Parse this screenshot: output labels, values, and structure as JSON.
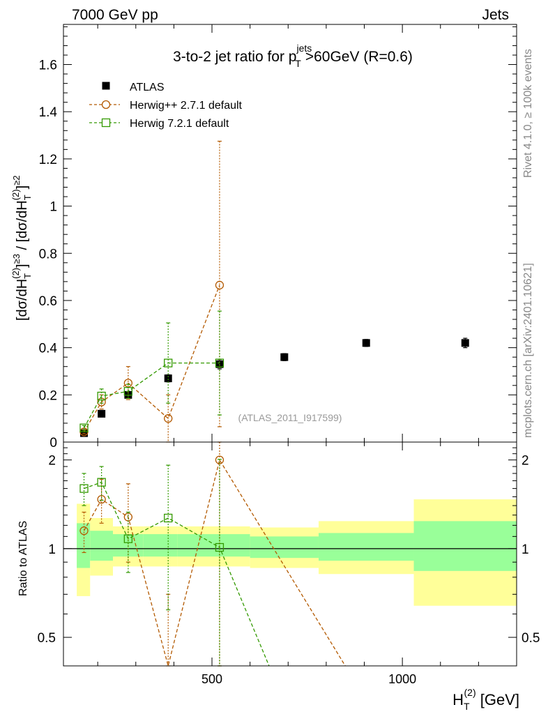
{
  "header": {
    "left": "7000 GeV pp",
    "right": "Jets"
  },
  "side_texts": {
    "rivet": "Rivet 4.1.0, ≥ 100k events",
    "mcplots": "mcplots.cern.ch [arXiv:2401.10621]"
  },
  "chart_data": {
    "type": "scatter",
    "title_parts": {
      "pre": "3-to-2 jet ratio for p",
      "sup": "jets",
      "sub": "T",
      "post": ">60GeV (R=0.6)"
    },
    "watermark": "(ATLAS_2011_I917599)",
    "xlabel_parts": {
      "main": "H",
      "sub": "T",
      "sup": "(2)",
      "post": " [GeV]"
    },
    "ylabel": "[dσ/dH_T^(2)]^≥3 / [dσ/dH_T^(2)]^≥2",
    "ylabel_parts": {
      "a": "[dσ/dH",
      "a_sub": "T",
      "a_sup": "(2)",
      "b": "]",
      "b_sup": "≥3",
      "c": " / [dσ/dH",
      "c_sub": "T",
      "c_sup": "(2)",
      "d": "]",
      "d_sup": "≥2"
    },
    "ratio_ylabel": "Ratio to ATLAS",
    "xlim": [
      110,
      1300
    ],
    "ylim": [
      0,
      1.77
    ],
    "ratio_ylim": [
      0.4,
      2.3
    ],
    "x_major_ticks": [
      500,
      1000
    ],
    "x_tick_labels": [
      "500",
      "1000"
    ],
    "y_ticks": [
      0,
      0.2,
      0.4,
      0.6,
      0.8,
      1,
      1.2,
      1.4,
      1.6
    ],
    "y_tick_labels": [
      "0",
      "0.2",
      "0.4",
      "0.6",
      "0.8",
      "1",
      "1.2",
      "1.4",
      "1.6"
    ],
    "ratio_ticks": [
      0.5,
      1,
      2
    ],
    "ratio_tick_labels": [
      "0.5",
      "1",
      "2"
    ],
    "legend": [
      "ATLAS",
      "Herwig++ 2.7.1 default",
      "Herwig 7.2.1 default"
    ],
    "bins": [
      [
        145,
        180
      ],
      [
        180,
        240
      ],
      [
        240,
        320
      ],
      [
        320,
        410
      ],
      [
        410,
        600
      ],
      [
        600,
        780
      ],
      [
        780,
        1030
      ],
      [
        1030,
        1300
      ]
    ],
    "atlas_band": {
      "inner": [
        [
          0.86,
          1.22
        ],
        [
          0.91,
          1.15
        ],
        [
          0.94,
          1.12
        ],
        [
          0.94,
          1.12
        ],
        [
          0.94,
          1.12
        ],
        [
          0.93,
          1.1
        ],
        [
          0.91,
          1.13
        ],
        [
          0.84,
          1.24
        ]
      ],
      "outer": [
        [
          0.69,
          1.42
        ],
        [
          0.81,
          1.27
        ],
        [
          0.87,
          1.19
        ],
        [
          0.87,
          1.19
        ],
        [
          0.87,
          1.19
        ],
        [
          0.86,
          1.18
        ],
        [
          0.82,
          1.24
        ],
        [
          0.64,
          1.47
        ]
      ]
    },
    "series": [
      {
        "name": "ATLAS",
        "color": "#000000",
        "marker": "filled-square",
        "x": [
          164,
          210,
          280,
          385,
          520,
          690,
          905,
          1165
        ],
        "y": [
          0.038,
          0.12,
          0.2,
          0.27,
          0.33,
          0.36,
          0.42,
          0.42
        ],
        "yerr": [
          0.005,
          0.012,
          0.012,
          0.015,
          0.02,
          0.015,
          0.015,
          0.02
        ]
      },
      {
        "name": "Herwig++ 2.7.1 default",
        "color": "#b35900",
        "marker": "open-circle",
        "x": [
          164,
          210,
          280,
          385,
          520
        ],
        "y": [
          0.043,
          0.17,
          0.25,
          0.1,
          0.665
        ],
        "yerr_lo": [
          0.008,
          0.03,
          0.07,
          0.1,
          0.6
        ],
        "yerr_hi": [
          0.008,
          0.03,
          0.07,
          0.1,
          0.61
        ],
        "ratio": [
          1.15,
          1.47,
          1.28,
          0.3,
          2.0
        ],
        "ratio_err_lo": [
          0.18,
          0.25,
          0.38,
          0.4,
          1.9
        ],
        "ratio_err_hi": [
          0.18,
          0.25,
          0.38,
          0.4,
          1.9
        ],
        "ratio_tail": {
          "x": 850,
          "y": 0.2
        }
      },
      {
        "name": "Herwig 7.2.1 default",
        "color": "#339900",
        "marker": "open-square",
        "x": [
          164,
          210,
          280,
          385,
          520
        ],
        "y": [
          0.06,
          0.195,
          0.215,
          0.335,
          0.335
        ],
        "yerr_lo": [
          0.01,
          0.03,
          0.03,
          0.17,
          0.22
        ],
        "yerr_hi": [
          0.01,
          0.03,
          0.03,
          0.17,
          0.22
        ],
        "ratio": [
          1.6,
          1.68,
          1.08,
          1.27,
          1.01
        ],
        "ratio_err_lo": [
          0.2,
          0.22,
          0.25,
          0.65,
          1.0
        ],
        "ratio_err_hi": [
          0.2,
          0.22,
          0.25,
          0.65,
          1.0
        ],
        "ratio_tail": {
          "x": 650,
          "y": 0.2
        }
      }
    ]
  }
}
